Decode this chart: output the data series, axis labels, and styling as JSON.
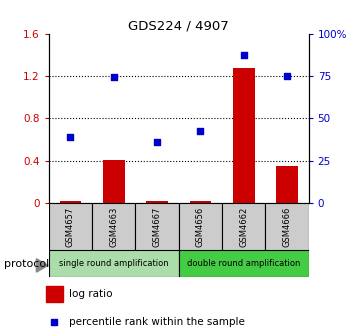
{
  "title": "GDS224 / 4907",
  "samples": [
    "GSM4657",
    "GSM4663",
    "GSM4667",
    "GSM4656",
    "GSM4662",
    "GSM4666"
  ],
  "log_ratio": [
    0.02,
    0.41,
    0.02,
    0.02,
    1.28,
    0.35
  ],
  "percentile_rank": [
    0.625,
    1.19,
    0.575,
    0.68,
    1.4,
    1.2
  ],
  "ylim": [
    0,
    1.6
  ],
  "yticks_left": [
    0,
    0.4,
    0.8,
    1.2,
    1.6
  ],
  "ytick_labels_left": [
    "0",
    "0.4",
    "0.8",
    "1.2",
    "1.6"
  ],
  "yticks_right": [
    0,
    0.4,
    0.8,
    1.2,
    1.6
  ],
  "ytick_labels_right": [
    "0",
    "25",
    "50",
    "75",
    "100%"
  ],
  "bar_color": "#cc0000",
  "scatter_color": "#0000cc",
  "proto1_label": "single round amplification",
  "proto2_label": "double round amplification",
  "proto1_color": "#aaddaa",
  "proto2_color": "#44cc44",
  "protocol_label": "protocol",
  "legend_log_ratio": "log ratio",
  "legend_percentile": "percentile rank within the sample",
  "bar_width": 0.5,
  "bg_color": "#ffffff",
  "left_tick_color": "#cc0000",
  "right_tick_color": "#0000cc",
  "sample_box_color": "#cccccc"
}
